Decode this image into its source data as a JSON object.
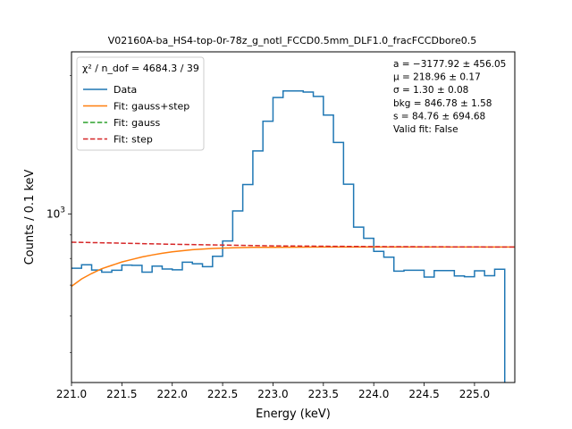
{
  "chart_data": {
    "type": "line",
    "title": "V02160A-ba_HS4-top-0r-78z_g_notl_FCCD0.5mm_DLF1.0_fracFCCDbore0.5",
    "xlabel": "Energy (keV)",
    "ylabel": "Counts / 0.1 keV",
    "xlim": [
      221.0,
      225.4
    ],
    "ylim": [
      430,
      2250
    ],
    "yscale": "log",
    "xticks": [
      221.0,
      221.5,
      222.0,
      222.5,
      223.0,
      223.5,
      224.0,
      224.5,
      225.0
    ],
    "xtick_labels": [
      "221.0",
      "221.5",
      "222.0",
      "222.5",
      "223.0",
      "223.5",
      "224.0",
      "224.5",
      "225.0"
    ],
    "ytick_label": "10^3",
    "legend_title": "χ² / n_dof = 4684.3 / 39",
    "legend_position": "top-left",
    "series": [
      {
        "name": "Data",
        "style": "step",
        "color": "#1f77b4",
        "bin_edges": [
          221.0,
          221.1,
          221.2,
          221.3,
          221.4,
          221.5,
          221.6,
          221.7,
          221.8,
          221.9,
          222.0,
          222.1,
          222.2,
          222.3,
          222.4,
          222.5,
          222.6,
          222.7,
          222.8,
          222.9,
          223.0,
          223.1,
          223.2,
          223.3,
          223.4,
          223.5,
          223.6,
          223.7,
          223.8,
          223.9,
          224.0,
          224.1,
          224.2,
          224.3,
          224.4,
          224.5,
          224.6,
          224.7,
          224.8,
          224.9,
          225.0,
          225.1,
          225.2,
          225.3,
          225.4
        ],
        "values": [
          762,
          775,
          755,
          747,
          754,
          774,
          773,
          747,
          770,
          759,
          756,
          785,
          779,
          768,
          809,
          873,
          1015,
          1158,
          1370,
          1590,
          1790,
          1850,
          1850,
          1840,
          1800,
          1640,
          1430,
          1160,
          936,
          885,
          829,
          805,
          751,
          754,
          754,
          729,
          753,
          753,
          733,
          730,
          752,
          734,
          758,
          400
        ]
      },
      {
        "name": "Fit: gauss+step",
        "style": "solid",
        "color": "#ff7f0e",
        "x": [
          221.0,
          221.1,
          221.2,
          221.3,
          221.4,
          221.5,
          221.6,
          221.7,
          221.8,
          221.9,
          222.0,
          222.2,
          222.4,
          222.6,
          222.8,
          223.0,
          223.5,
          224.0,
          224.5,
          225.0,
          225.4
        ],
        "values": [
          696,
          722,
          742,
          760,
          773,
          786,
          796,
          806,
          814,
          821,
          827,
          836,
          841,
          844,
          846,
          846,
          847,
          847,
          847,
          847,
          847
        ]
      },
      {
        "name": "Fit: gauss",
        "style": "dashed",
        "color": "#2ca02c",
        "x": [],
        "values": []
      },
      {
        "name": "Fit: step",
        "style": "dashed",
        "color": "#d62728",
        "x": [
          221.0,
          222.0,
          223.0,
          224.0,
          225.4
        ],
        "values": [
          868,
          859,
          852,
          849,
          847
        ]
      }
    ],
    "annotations": [
      "a = −3177.92 ± 456.05",
      "μ = 218.96 ± 0.17",
      "σ = 1.30 ± 0.08",
      "bkg = 846.78 ± 1.58",
      "s = 84.76 ± 694.68",
      "Valid fit: False"
    ]
  }
}
